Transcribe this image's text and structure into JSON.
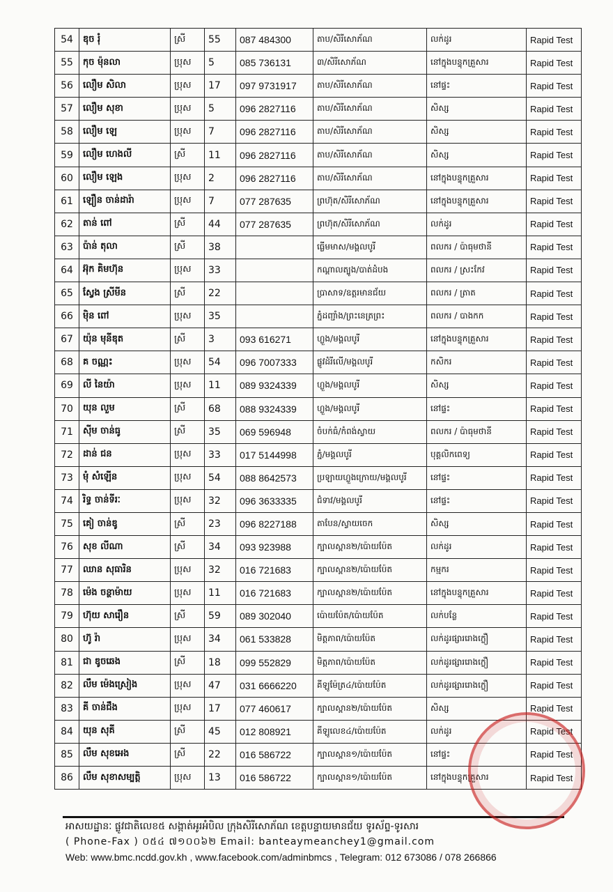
{
  "table": {
    "rows": [
      [
        "54",
        "ឌុច រុំ",
        "ស្រី",
        "55",
        "087 484300",
        "តាប/សិរីសោភ័ណ",
        "លក់ដូរ",
        "Rapid Test"
      ],
      [
        "55",
        "កុច ម៉ុនលា",
        "ប្រុស",
        "5",
        "085 736131",
        "៣/សិរីសោភ័ណ",
        "នៅក្នុងបន្ទុកគ្រួសារ",
        "Rapid Test"
      ],
      [
        "56",
        "លឿម សិលា",
        "ប្រុស",
        "17",
        "097 9731917",
        "តាប/សិរីសោភ័ណ",
        "នៅផ្ទះ",
        "Rapid Test"
      ],
      [
        "57",
        "លឿម សុខា",
        "ប្រុស",
        "5",
        "096 2827116",
        "តាប/សិរីសោភ័ណ",
        "សិស្ស",
        "Rapid Test"
      ],
      [
        "58",
        "លឿម ឡេ",
        "ប្រុស",
        "7",
        "096 2827116",
        "តាប/សិរីសោភ័ណ",
        "សិស្ស",
        "Rapid Test"
      ],
      [
        "59",
        "លឿម ហេងលី",
        "ស្រី",
        "11",
        "096 2827116",
        "តាប/សិរីសោភ័ណ",
        "សិស្ស",
        "Rapid Test"
      ],
      [
        "60",
        "លឿម ឡេង",
        "ប្រុស",
        "2",
        "096 2827116",
        "តាប/សិរីសោភ័ណ",
        "នៅក្នុងបន្ទុកគ្រួសារ",
        "Rapid Test"
      ],
      [
        "61",
        "ឡឿន ចាន់ដារ៉ា",
        "ប្រុស",
        "7",
        "077 287635",
        "ព្រហ៊ុត/សិរីសោភ័ណ",
        "នៅក្នុងបន្ទុកគ្រួសារ",
        "Rapid Test"
      ],
      [
        "62",
        "តាន់ ពៅ",
        "ស្រី",
        "44",
        "077 287635",
        "ព្រហ៊ុត/សិរីសោភ័ណ",
        "លក់ដូរ",
        "Rapid Test"
      ],
      [
        "63",
        "ប៉ាន់ តុលា",
        "ស្រី",
        "38",
        "",
        "ធ្លើមមាស/មង្គលបូរី",
        "ពលករ / ប៉ាធុមថានី",
        "Rapid Test"
      ],
      [
        "64",
        "អ៊ុក គិមហ៊ុន",
        "ប្រុស",
        "33",
        "",
        "កណ្តាលត្បូង/បាត់ដំបង",
        "ពលករ / ស្រះកែវ",
        "Rapid Test"
      ],
      [
        "65",
        "ស្វែង ស្រីមីន",
        "ស្រី",
        "22",
        "",
        "ប្រាសាទ/ឧត្តរមានជ័យ",
        "ពលករ / ត្រាត",
        "Rapid Test"
      ],
      [
        "66",
        "ម៉ិន ពៅ",
        "ប្រុស",
        "35",
        "",
        "ភ្នំដញ្ជាំង/ព្រះនេត្រព្រះ",
        "ពលករ / បាងកក",
        "Rapid Test"
      ],
      [
        "67",
        "យ៉ុន មុនីឌុត",
        "ស្រី",
        "3",
        "093 616271",
        "ហ្លួង/មង្គលបូរី",
        "នៅក្នុងបន្ទុកគ្រួសារ",
        "Rapid Test"
      ],
      [
        "68",
        "គ ចណ្ណះ",
        "ប្រុស",
        "54",
        "096 7007333",
        "ផ្លូវដំរីលើ/មង្គលបូរី",
        "កសិករ",
        "Rapid Test"
      ],
      [
        "69",
        "លី នៃយ៉ា",
        "ប្រុស",
        "11",
        "089 9324339",
        "ហ្លួង/មង្គលបូរី",
        "សិស្ស",
        "Rapid Test"
      ],
      [
        "70",
        "យុន លួម",
        "ស្រី",
        "68",
        "088 9324339",
        "ហ្លួង/មង្គលបូរី",
        "នៅផ្ទះ",
        "Rapid Test"
      ],
      [
        "71",
        "ស៊ីម ចាន់ធូ",
        "ស្រី",
        "35",
        "069 596948",
        "ចំបក់ធំ/កំពង់ស្វាយ",
        "ពលករ / ប៉ាធុមថានី",
        "Rapid Test"
      ],
      [
        "72",
        "ដាន់ ជន",
        "ប្រុស",
        "33",
        "017 5144998",
        "ភ្នំ/មង្គលបូរី",
        "បុគ្គលិកពេទ្យ",
        "Rapid Test"
      ],
      [
        "73",
        "មុំ សំឡើន",
        "ប្រុស",
        "54",
        "088 8642573",
        "ប្រឡាយហ្លួងក្រោយ/មង្គលបូរី",
        "នៅផ្ទះ",
        "Rapid Test"
      ],
      [
        "74",
        "រិទ្ធ ចាន់ទីរៈ",
        "ប្រុស",
        "32",
        "096 3633335",
        "ជំទាវ/មង្គលបូរី",
        "នៅផ្ទះ",
        "Rapid Test"
      ],
      [
        "75",
        "គៀ ចាន់ឌូ",
        "ស្រី",
        "23",
        "096 8227188",
        "តាបែន/ស្វាយចេក",
        "សិស្ស",
        "Rapid Test"
      ],
      [
        "76",
        "សុខ លីណា",
        "ស្រី",
        "34",
        "093 923988",
        "ក្បាលស្ពាន២/ប៉ោយប៉ែត",
        "លក់ដូរ",
        "Rapid Test"
      ],
      [
        "77",
        "ឈាន សុធារិន",
        "ប្រុស",
        "32",
        "016 721683",
        "ក្បាលស្ពាន២/ប៉ោយប៉ែត",
        "កម្មករ",
        "Rapid Test"
      ],
      [
        "78",
        "ម៉េង ចន្ថាម៉ាយ",
        "ប្រុស",
        "11",
        "016 721683",
        "ក្បាលស្ពាន២/ប៉ោយប៉ែត",
        "នៅក្នុងបន្ទុកគ្រួសារ",
        "Rapid Test"
      ],
      [
        "79",
        "ហ៊ុយ សារឿន",
        "ស្រី",
        "59",
        "089 302040",
        "ប៉ោយប៉ែត/ប៉ោយប៉ែត",
        "លក់បន្លែ",
        "Rapid Test"
      ],
      [
        "80",
        "ហ៊ូ រ៉ា",
        "ប្រុស",
        "34",
        "061 533828",
        "មិត្តភាព/ប៉ោយប៉ែត",
        "លក់ដូរផ្សាររោងក្លឿ",
        "Rapid Test"
      ],
      [
        "81",
        "ជា ឌូចឆេង",
        "ស្រី",
        "18",
        "099  552829",
        "មិត្តភាព/ប៉ោយប៉ែត",
        "លក់ដូរផ្សាររោងក្លឿ",
        "Rapid Test"
      ],
      [
        "82",
        "លឹម ម៉េងស្រៀង",
        "ប្រុស",
        "47",
        "031 6666220",
        "គីឡូម៉ែត្រ៤/ប៉ោយប៉ែត",
        "លក់ដូរផ្សាររោងក្លឿ",
        "Rapid Test"
      ],
      [
        "83",
        "គី ចាន់ជឹង",
        "ប្រុស",
        "17",
        "077 460617",
        "ក្បាលស្ពាន២/ប៉ោយប៉ែត",
        "សិស្ស",
        "Rapid Test"
      ],
      [
        "84",
        "យុន សុគី",
        "ស្រី",
        "45",
        "012 808921",
        "គីឡូលេខ៤/ប៉ោយប៉ែត",
        "លក់ដូរ",
        "Rapid Test"
      ],
      [
        "85",
        "លឹម សុខអេង",
        "ស្រី",
        "22",
        "016 586722",
        "ក្បាលស្ពាន១/ប៉ោយប៉ែត",
        "នៅផ្ទះ",
        "Rapid Test"
      ],
      [
        "86",
        "លឹម សុខាសម្បត្តិ",
        "ប្រុស",
        "13",
        "016 586722",
        "ក្បាលស្ពាន១/ប៉ោយប៉ែត",
        "នៅក្នុងបន្ទុកគ្រួសារ",
        "Rapid Test"
      ]
    ]
  },
  "footer": {
    "address": "អាសយដ្ឋានៈ ផ្លូវជាតិលេខ៥ សង្កាត់អូរអំបិល ក្រុងសិរីសោភ័ណ ខេត្តបន្ទាយមានជ័យ ទូរស័ព្ទ-ទូរសារ",
    "phone_prefix": "( Phone-Fax ) ០៥៤ ៧១០០៦២ Email: ",
    "email": "banteaymeanchey1@gmail.com",
    "web_prefix": "Web: ",
    "web": "www.bmc.ncdd.gov.kh",
    "sep": " , ",
    "facebook": "www.facebook.com/adminbmcs",
    "telegram": " , Telegram: 012 673086 / 078 266866"
  },
  "colors": {
    "stamp": "#c81e1e"
  }
}
